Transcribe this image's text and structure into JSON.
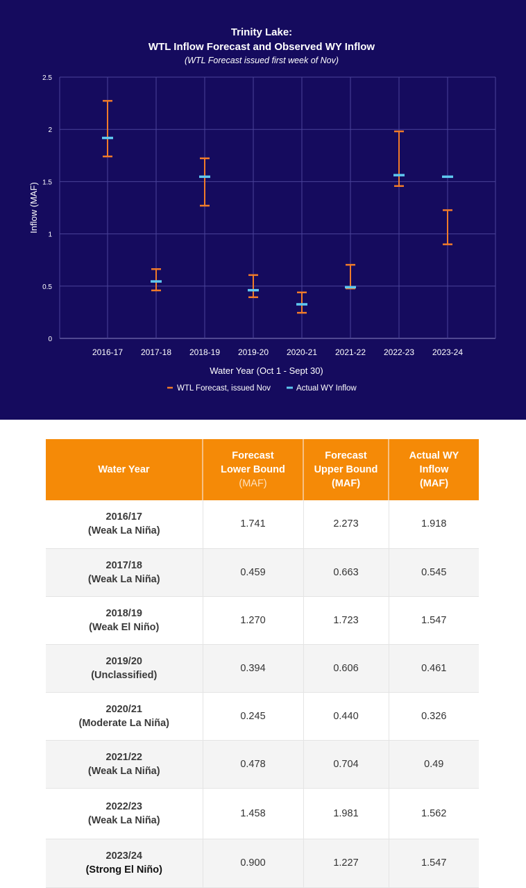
{
  "chart_data": {
    "type": "error_bar",
    "title": "Trinity Lake:",
    "subtitle": "WTL Inflow Forecast and Observed WY Inflow",
    "note": "(WTL Forecast issued first week of Nov)",
    "xlabel": "Water Year (Oct 1 - Sept 30)",
    "ylabel": "Inflow (MAF)",
    "ylim": [
      0,
      2.5
    ],
    "yticks": [
      "0",
      "0.5",
      "1",
      "1.5",
      "2",
      "2.5"
    ],
    "categories": [
      "2016-17",
      "2017-18",
      "2018-19",
      "2019-20",
      "2020-21",
      "2021-22",
      "2022-23",
      "2023-24"
    ],
    "series": [
      {
        "name": "WTL Forecast, issued Nov",
        "color": "#f07b2a",
        "low": [
          1.741,
          0.459,
          1.27,
          0.394,
          0.245,
          0.478,
          1.458,
          0.9
        ],
        "high": [
          2.273,
          0.663,
          1.723,
          0.606,
          0.44,
          0.704,
          1.981,
          1.227
        ]
      },
      {
        "name": "Actual WY Inflow",
        "color": "#5fc8f0",
        "values": [
          1.918,
          0.545,
          1.547,
          0.461,
          0.326,
          0.49,
          1.562,
          1.547
        ]
      }
    ],
    "grid": true,
    "legend": "bottom-center"
  },
  "table": {
    "headers": [
      {
        "lines": [
          "Water Year"
        ],
        "unit": "",
        "unit_bold": false
      },
      {
        "lines": [
          "Forecast",
          "Lower Bound"
        ],
        "unit": "(MAF)",
        "unit_bold": false
      },
      {
        "lines": [
          "Forecast",
          "Upper Bound"
        ],
        "unit": "(MAF)",
        "unit_bold": true
      },
      {
        "lines": [
          "Actual WY",
          "Inflow"
        ],
        "unit": "(MAF)",
        "unit_bold": true
      }
    ],
    "rows": [
      {
        "year": "2016/17",
        "cls": "(Weak La Niña)",
        "lower": "1.741",
        "upper": "2.273",
        "actual": "1.918"
      },
      {
        "year": "2017/18",
        "cls": "(Weak La Niña)",
        "lower": "0.459",
        "upper": "0.663",
        "actual": "0.545"
      },
      {
        "year": "2018/19",
        "cls": "(Weak El Niño)",
        "lower": "1.270",
        "upper": "1.723",
        "actual": "1.547"
      },
      {
        "year": "2019/20",
        "cls": "(Unclassified)",
        "lower": "0.394",
        "upper": "0.606",
        "actual": "0.461"
      },
      {
        "year": "2020/21",
        "cls": "(Moderate La Niña)",
        "lower": "0.245",
        "upper": "0.440",
        "actual": "0.326"
      },
      {
        "year": "2021/22",
        "cls": "(Weak La Niña)",
        "lower": "0.478",
        "upper": "0.704",
        "actual": "0.49"
      },
      {
        "year": "2022/23",
        "cls": "(Weak La Niña)",
        "lower": "1.458",
        "upper": "1.981",
        "actual": "1.562"
      },
      {
        "year": "2023/24",
        "cls": "(Strong El Niño)",
        "lower": "0.900",
        "upper": "1.227",
        "actual": "1.547"
      }
    ]
  }
}
